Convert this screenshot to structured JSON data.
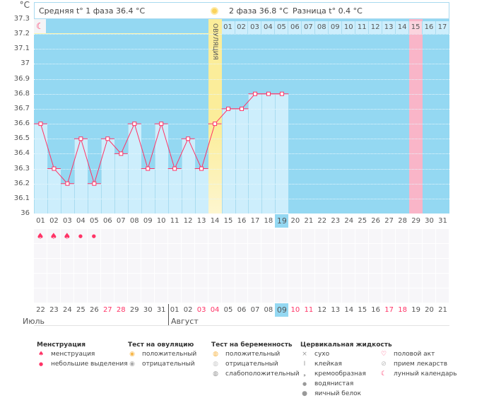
{
  "header": {
    "unit": "°C",
    "phase1": "Средняя t° 1 фаза 36.4 °C",
    "phase2": "2 фаза 36.8 °C",
    "difference": "Разница t° 0.4 °C",
    "ovulation_label": "ОВУЛЯЦИЯ"
  },
  "colors": {
    "background": "#94d8f2",
    "bar": "#cdeefc",
    "line": "#ff3366",
    "ovulation": "#fbed9a",
    "expected_period": "#f9b5c8",
    "today": "#94d8f2"
  },
  "chart_data": {
    "type": "line",
    "ylim": [
      36,
      37.3
    ],
    "yticks": [
      "37.3",
      "37.2",
      "37.1",
      "37",
      "36.9",
      "36.8",
      "36.7",
      "36.6",
      "36.5",
      "36.4",
      "36.3",
      "36.2",
      "36.1",
      "36"
    ],
    "coverline": 36.6,
    "cycle_days": [
      "01",
      "02",
      "03",
      "04",
      "05",
      "06",
      "07",
      "08",
      "09",
      "10",
      "11",
      "12",
      "13",
      "14",
      "15",
      "16",
      "17",
      "18",
      "19",
      "20",
      "21",
      "22",
      "23",
      "24",
      "25",
      "26",
      "27",
      "28",
      "29",
      "30",
      "31"
    ],
    "temperatures": [
      36.6,
      36.3,
      36.2,
      36.5,
      36.2,
      36.5,
      36.4,
      36.6,
      36.3,
      36.6,
      36.3,
      36.5,
      36.3,
      36.6,
      36.7,
      36.7,
      36.8,
      36.8,
      36.8
    ],
    "ovulation_day": 14,
    "today_day": 19,
    "expected_period_day": 29,
    "phase2_days": [
      "01",
      "02",
      "03",
      "04",
      "05",
      "06",
      "07",
      "08",
      "09",
      "10",
      "11",
      "12",
      "13",
      "14",
      "15",
      "16",
      "17"
    ]
  },
  "calendar": {
    "dates": [
      "22",
      "23",
      "24",
      "25",
      "26",
      "27",
      "28",
      "29",
      "30",
      "31",
      "01",
      "02",
      "03",
      "04",
      "05",
      "06",
      "07",
      "08",
      "09",
      "10",
      "11",
      "12",
      "13",
      "14",
      "15",
      "16",
      "17",
      "18",
      "19",
      "20",
      "21"
    ],
    "weekend_indexes": [
      5,
      6,
      12,
      13,
      19,
      20,
      26,
      27
    ],
    "months": [
      "Июль",
      "Август"
    ]
  },
  "symptoms": {
    "menstruation": [
      "heavy",
      "heavy",
      "heavy",
      "light",
      "light"
    ],
    "moon_day": 2
  },
  "legend": {
    "menstruation": {
      "title": "Менструация",
      "items": [
        "менструация",
        "небольшие выделения"
      ]
    },
    "ovulation_test": {
      "title": "Тест на овуляцию",
      "items": [
        "положительный",
        "отрицательный"
      ]
    },
    "pregnancy_test": {
      "title": "Тест на беременность",
      "items": [
        "положительный",
        "отрицательный",
        "слабоположительный"
      ]
    },
    "cervical": {
      "title": "Цервикальная жидкость",
      "items": [
        "сухо",
        "клейкая",
        "кремообразная",
        "водянистая",
        "яичный белок"
      ]
    },
    "other": {
      "items": [
        "половой акт",
        "прием лекарств",
        "лунный календарь"
      ]
    }
  }
}
